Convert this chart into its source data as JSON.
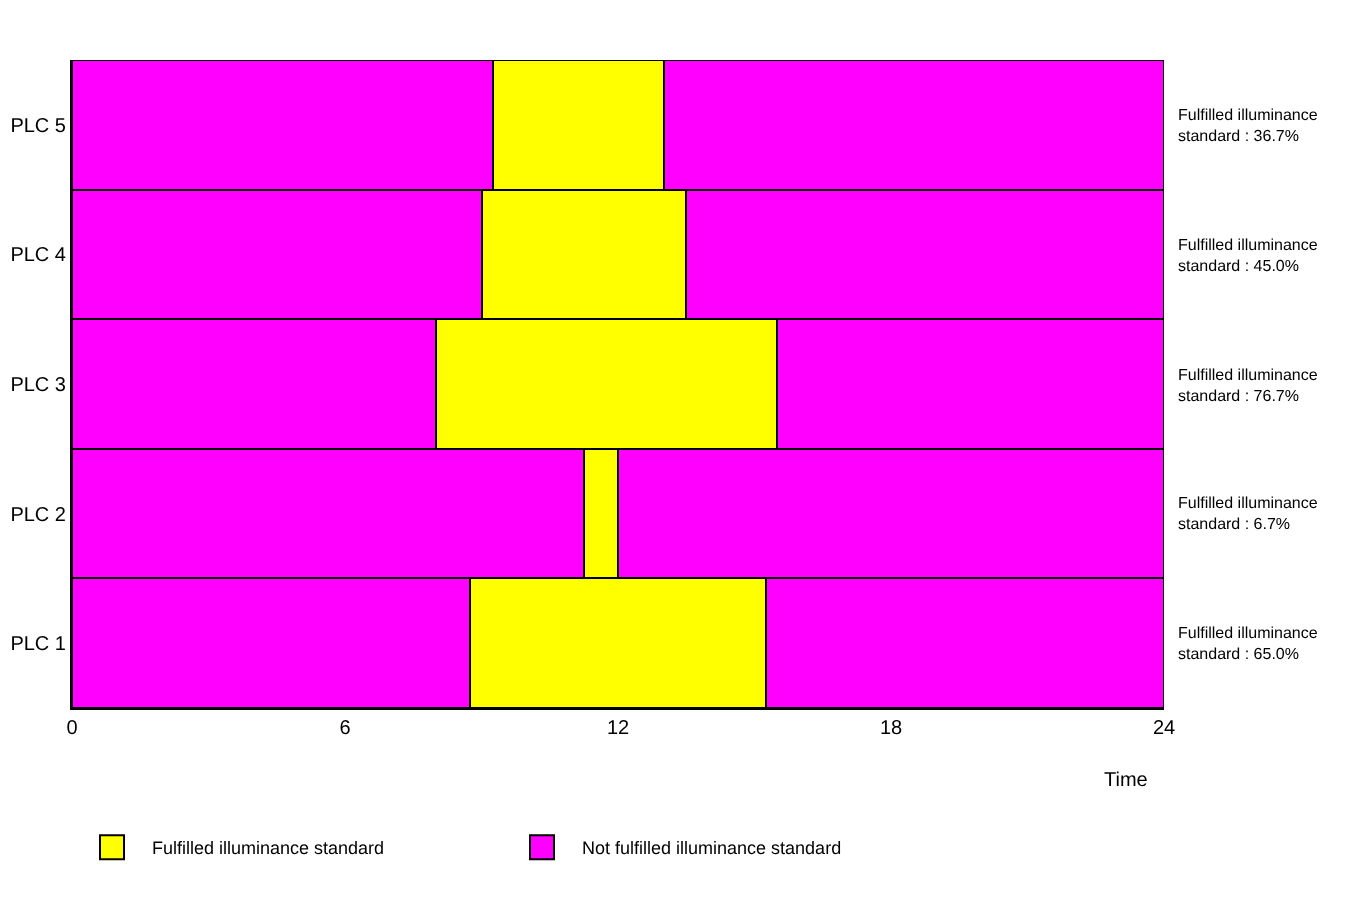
{
  "chart_data": {
    "type": "bar",
    "orientation": "horizontal",
    "stacked": true,
    "xlabel": "Time",
    "categories": [
      "PLC 5",
      "PLC 4",
      "PLC 3",
      "PLC 2",
      "PLC 1"
    ],
    "series": [
      {
        "name": "Not fulfilled illuminance standard",
        "color": "#ff00ff",
        "values": [
          9.25,
          9.0,
          8.0,
          11.25,
          8.75
        ]
      },
      {
        "name": "Fulfilled illuminance standard",
        "color": "#ffff00",
        "values": [
          3.75,
          4.5,
          7.5,
          0.75,
          6.5
        ]
      },
      {
        "color": "#ff00ff",
        "values": [
          11,
          10.5,
          8.5,
          12,
          8.75
        ]
      }
    ],
    "xlim": [
      0,
      24
    ],
    "xticks": [
      0,
      6,
      12,
      18,
      24
    ],
    "legend": "bottom left",
    "annotations": [
      "Fulfilled illuminance\nstandard : 36.7%",
      "Fulfilled illuminance\nstandard : 45.0%",
      "Fulfilled illuminance\nstandard : 76.7%",
      "Fulfilled illuminance\nstandard : 6.7%",
      "Fulfilled illuminance\nstandard : 65.0%"
    ]
  }
}
